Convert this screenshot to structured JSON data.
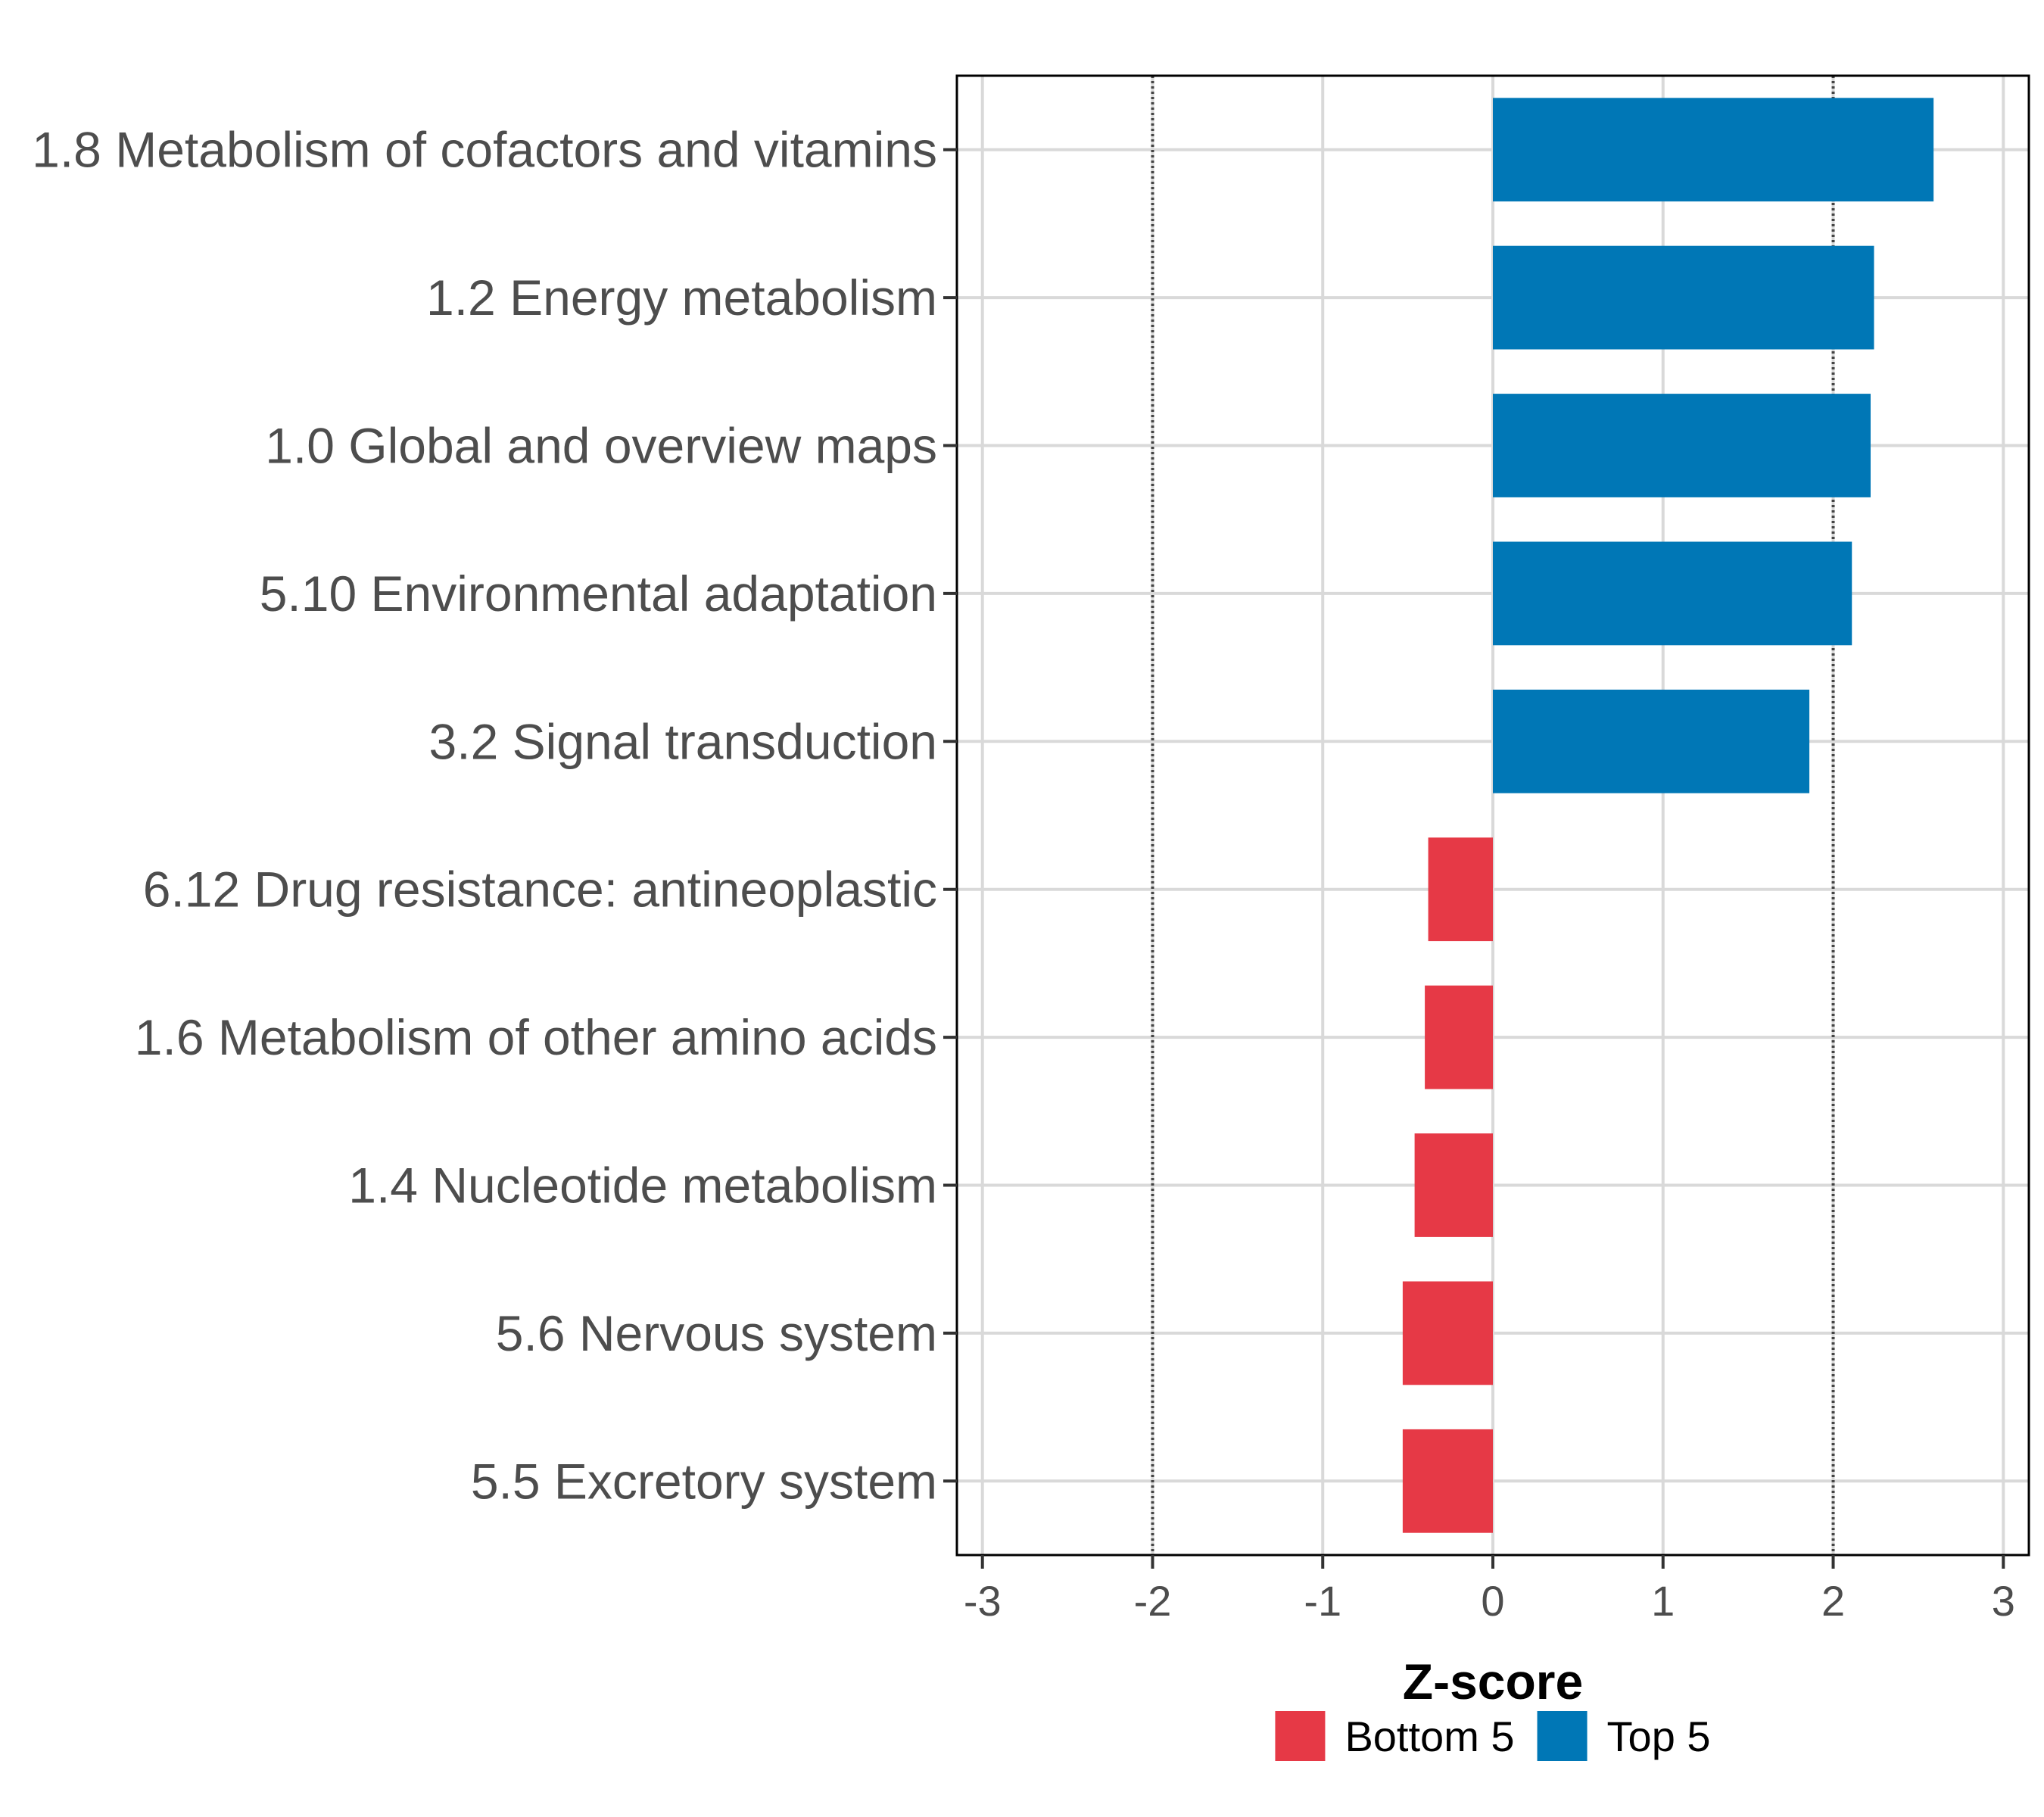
{
  "chart_data": {
    "type": "bar",
    "orientation": "horizontal",
    "categories": [
      "1.8 Metabolism of cofactors and vitamins",
      "1.2 Energy metabolism",
      "1.0 Global and overview maps",
      "5.10 Environmental adaptation",
      "3.2 Signal transduction",
      "6.12 Drug resistance: antineoplastic",
      "1.6 Metabolism of other amino acids",
      "1.4 Nucleotide metabolism",
      "5.6 Nervous system",
      "5.5 Excretory system"
    ],
    "values": [
      2.59,
      2.24,
      2.22,
      2.11,
      1.86,
      -0.38,
      -0.4,
      -0.46,
      -0.53,
      -0.53
    ],
    "groups": [
      "Top 5",
      "Top 5",
      "Top 5",
      "Top 5",
      "Top 5",
      "Bottom 5",
      "Bottom 5",
      "Bottom 5",
      "Bottom 5",
      "Bottom 5"
    ],
    "xlabel": "Z-score",
    "ylabel": "",
    "xlim": [
      -3.15,
      3.15
    ],
    "xticks": [
      -3,
      -2,
      -1,
      0,
      1,
      2,
      3
    ],
    "xtick_labels": [
      "-3",
      "-2",
      "-1",
      "0",
      "1",
      "2",
      "3"
    ],
    "reference_lines": [
      -2,
      2
    ],
    "grid": true,
    "legend": {
      "position": "bottom",
      "entries": [
        {
          "label": "Bottom 5",
          "color": "#e63946"
        },
        {
          "label": "Top 5",
          "color": "#0077b6"
        }
      ]
    }
  }
}
